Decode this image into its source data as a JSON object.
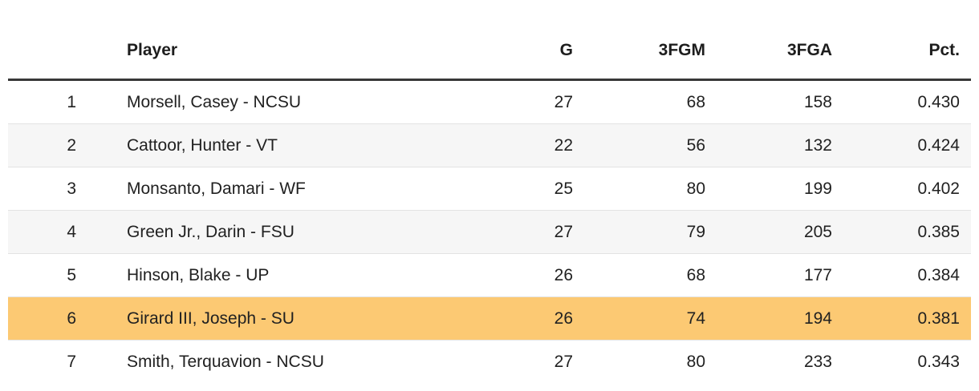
{
  "table": {
    "columns": [
      {
        "key": "rank",
        "label": ""
      },
      {
        "key": "player",
        "label": "Player"
      },
      {
        "key": "g",
        "label": "G"
      },
      {
        "key": "fgm3",
        "label": "3FGM"
      },
      {
        "key": "fga3",
        "label": "3FGA"
      },
      {
        "key": "pct",
        "label": "Pct."
      }
    ],
    "rows": [
      {
        "rank": "1",
        "player": "Morsell, Casey - NCSU",
        "g": "27",
        "fgm3": "68",
        "fga3": "158",
        "pct": "0.430",
        "highlighted": false
      },
      {
        "rank": "2",
        "player": "Cattoor, Hunter - VT",
        "g": "22",
        "fgm3": "56",
        "fga3": "132",
        "pct": "0.424",
        "highlighted": false
      },
      {
        "rank": "3",
        "player": "Monsanto, Damari - WF",
        "g": "25",
        "fgm3": "80",
        "fga3": "199",
        "pct": "0.402",
        "highlighted": false
      },
      {
        "rank": "4",
        "player": "Green Jr., Darin - FSU",
        "g": "27",
        "fgm3": "79",
        "fga3": "205",
        "pct": "0.385",
        "highlighted": false
      },
      {
        "rank": "5",
        "player": "Hinson, Blake - UP",
        "g": "26",
        "fgm3": "68",
        "fga3": "177",
        "pct": "0.384",
        "highlighted": false
      },
      {
        "rank": "6",
        "player": "Girard III, Joseph - SU",
        "g": "26",
        "fgm3": "74",
        "fga3": "194",
        "pct": "0.381",
        "highlighted": true
      },
      {
        "rank": "7",
        "player": "Smith, Terquavion - NCSU",
        "g": "27",
        "fgm3": "80",
        "fga3": "233",
        "pct": "0.343",
        "highlighted": false
      }
    ],
    "colors": {
      "highlight": "#fcc973",
      "alt_row": "#f6f6f6",
      "header_border": "#383838",
      "row_border": "#e3e3e3",
      "text": "#212121"
    }
  }
}
